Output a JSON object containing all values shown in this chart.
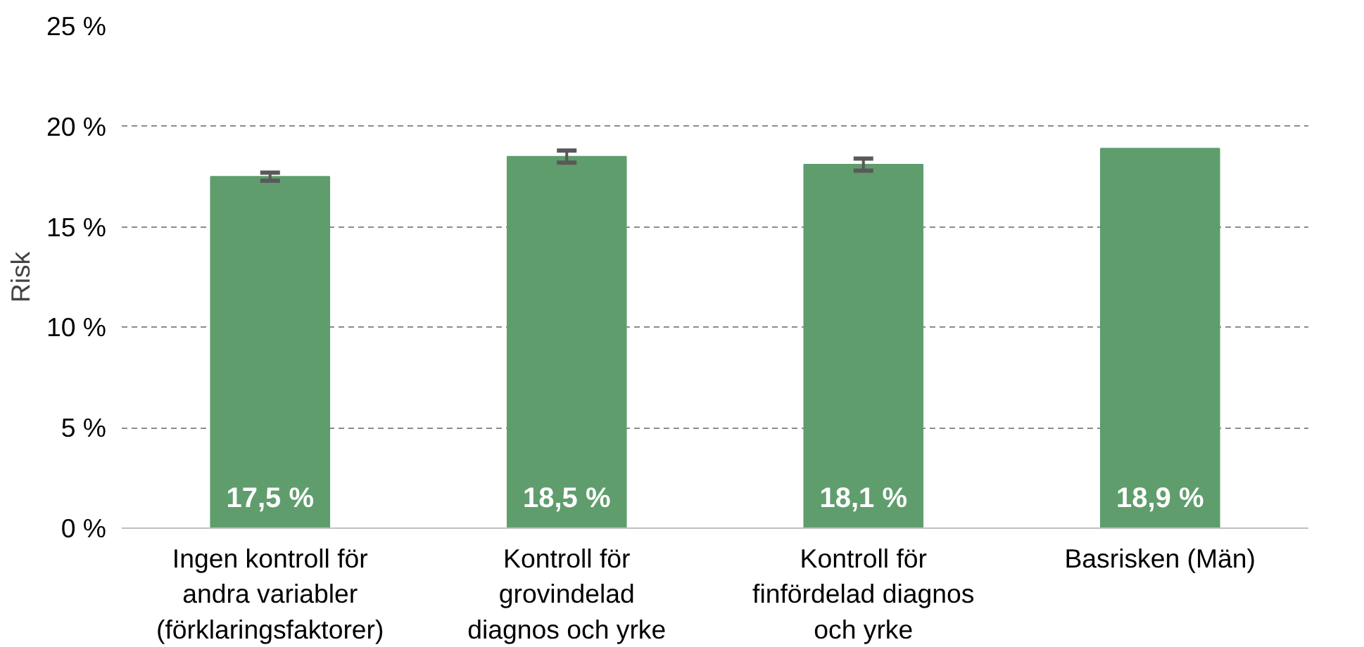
{
  "chart_data": {
    "type": "bar",
    "ylabel": "Risk",
    "categories": [
      "Ingen kontroll för\nandra variabler\n(förklaringsfaktorer)",
      "Kontroll för\ngrovindelad\ndiagnos och yrke",
      "Kontroll för\nfinfördelad diagnos\noch yrke",
      "Basrisken (Män)"
    ],
    "values": [
      17.5,
      18.5,
      18.1,
      18.9
    ],
    "errors": [
      0.2,
      0.3,
      0.3,
      null
    ],
    "value_labels": [
      "17,5 %",
      "18,5 %",
      "18,1 %",
      "18,9 %"
    ],
    "color": "#5f9d6d",
    "ylim": [
      0,
      25
    ],
    "yticks": [
      {
        "value": 0,
        "label": "0 %"
      },
      {
        "value": 5,
        "label": "5 %"
      },
      {
        "value": 10,
        "label": "10 %"
      },
      {
        "value": 15,
        "label": "15 %"
      },
      {
        "value": 20,
        "label": "20 %"
      },
      {
        "value": 25,
        "label": "25 %"
      }
    ],
    "grid": "y"
  }
}
